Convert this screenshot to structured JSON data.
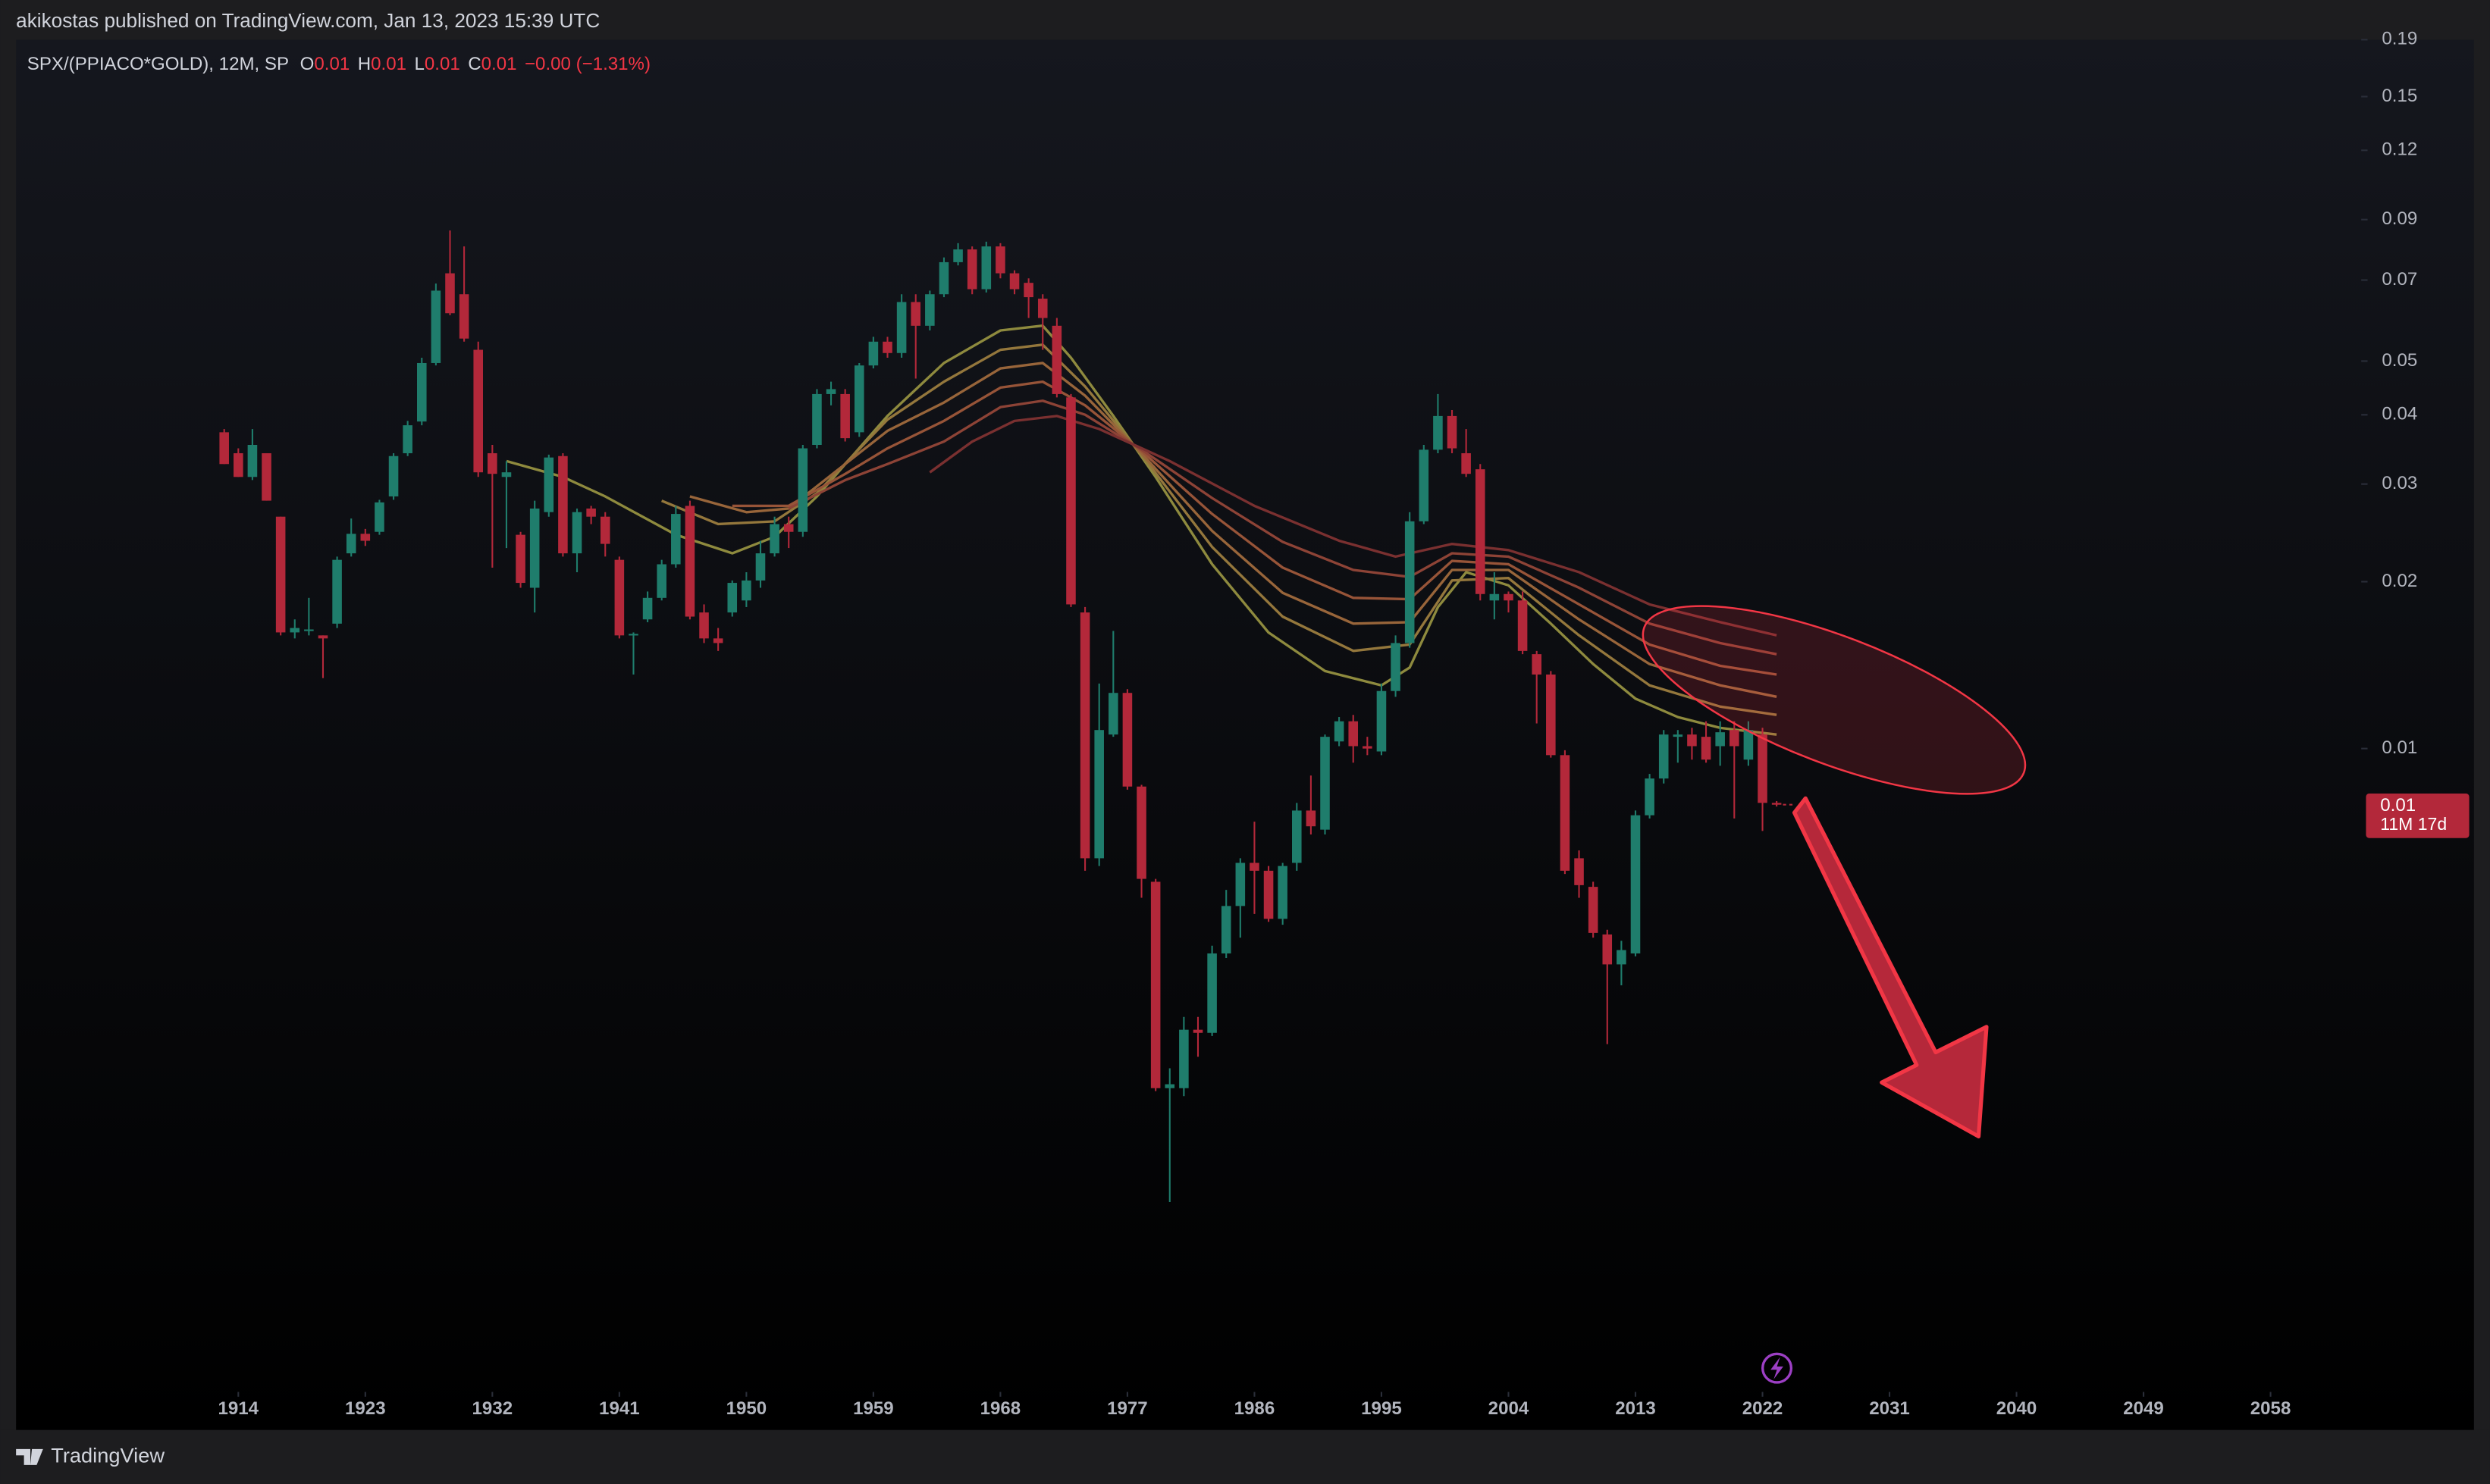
{
  "header": {
    "text": "akikostas published on TradingView.com, Jan 13, 2023 15:39 UTC"
  },
  "footer": {
    "brand": "TradingView"
  },
  "chart_data": {
    "type": "candlestick",
    "title": "SPX/(PPIACO*GOLD), 12M, SP",
    "ohlc_legend": [
      {
        "label": "O",
        "value": "0.01"
      },
      {
        "label": "H",
        "value": "0.01"
      },
      {
        "label": "L",
        "value": "0.01"
      },
      {
        "label": "C",
        "value": "0.01"
      }
    ],
    "change": "−0.00 (−1.31%)",
    "last_price": {
      "label": "0.01",
      "countdown": "11M 17d"
    },
    "log_scale": true,
    "grid": false,
    "up_color": "#1f7d6c",
    "down_color": "#b3283a",
    "xlim": [
      1898.25,
      2064.2
    ],
    "xticks": [
      1914,
      1923,
      1932,
      1941,
      1950,
      1959,
      1968,
      1977,
      1986,
      1995,
      2004,
      2013,
      2022,
      2031,
      2040,
      2049,
      2058
    ],
    "ylim": [
      0.0007,
      0.19
    ],
    "yticks": [
      0.01,
      0.02,
      0.03,
      0.04,
      0.05,
      0.07,
      0.09,
      0.12,
      0.15,
      0.19
    ],
    "x": [
      1913,
      1914,
      1915,
      1916,
      1917,
      1918,
      1919,
      1920,
      1921,
      1922,
      1923,
      1924,
      1925,
      1926,
      1927,
      1928,
      1929,
      1930,
      1931,
      1932,
      1933,
      1934,
      1935,
      1936,
      1937,
      1938,
      1939,
      1940,
      1941,
      1942,
      1943,
      1944,
      1945,
      1946,
      1947,
      1948,
      1949,
      1950,
      1951,
      1952,
      1953,
      1954,
      1955,
      1956,
      1957,
      1958,
      1959,
      1960,
      1961,
      1962,
      1963,
      1964,
      1965,
      1966,
      1967,
      1968,
      1969,
      1970,
      1971,
      1972,
      1973,
      1974,
      1975,
      1976,
      1977,
      1978,
      1979,
      1980,
      1981,
      1982,
      1983,
      1984,
      1985,
      1986,
      1987,
      1988,
      1989,
      1990,
      1991,
      1992,
      1993,
      1994,
      1995,
      1996,
      1997,
      1998,
      1999,
      2000,
      2001,
      2002,
      2003,
      2004,
      2005,
      2006,
      2007,
      2008,
      2009,
      2010,
      2011,
      2012,
      2013,
      2014,
      2015,
      2016,
      2017,
      2018,
      2019,
      2020,
      2021,
      2022,
      2023
    ],
    "open": [
      0.0372,
      0.0341,
      0.0309,
      0.0341,
      0.0262,
      0.0162,
      0.0163,
      0.016,
      0.0168,
      0.0225,
      0.0244,
      0.0246,
      0.0285,
      0.0341,
      0.0389,
      0.0496,
      0.072,
      0.066,
      0.0524,
      0.0341,
      0.0309,
      0.0243,
      0.0195,
      0.0267,
      0.0337,
      0.0225,
      0.0271,
      0.0262,
      0.0219,
      0.016,
      0.0171,
      0.0187,
      0.0215,
      0.0274,
      0.0176,
      0.0158,
      0.0176,
      0.0185,
      0.0201,
      0.0225,
      0.0254,
      0.0246,
      0.0353,
      0.0436,
      0.0436,
      0.0372,
      0.0491,
      0.0542,
      0.0517,
      0.0639,
      0.0579,
      0.066,
      0.0754,
      0.0795,
      0.0674,
      0.0805,
      0.072,
      0.0692,
      0.0648,
      0.0579,
      0.043,
      0.0176,
      0.00634,
      0.0106,
      0.0126,
      0.00854,
      0.00575,
      0.00244,
      0.00244,
      0.00311,
      0.00307,
      0.00427,
      0.0052,
      0.00622,
      0.00602,
      0.00493,
      0.00622,
      0.00773,
      0.00714,
      0.0103,
      0.0112,
      0.0101,
      0.00988,
      0.0127,
      0.0155,
      0.0257,
      0.0346,
      0.0398,
      0.0341,
      0.0319,
      0.0185,
      0.019,
      0.0185,
      0.0148,
      0.0136,
      0.00973,
      0.00634,
      0.00563,
      0.00462,
      0.00408,
      0.00427,
      0.00758,
      0.00883,
      0.0105,
      0.0106,
      0.0105,
      0.0101,
      0.0108,
      0.00955,
      0.0106,
      0.00798
    ],
    "high": [
      0.0377,
      0.0348,
      0.0377,
      0.0341,
      0.0262,
      0.0171,
      0.0187,
      0.016,
      0.0222,
      0.026,
      0.0249,
      0.0281,
      0.0341,
      0.039,
      0.0507,
      0.069,
      0.086,
      0.0805,
      0.0542,
      0.0353,
      0.033,
      0.0246,
      0.028,
      0.0339,
      0.0341,
      0.0271,
      0.0274,
      0.0267,
      0.0222,
      0.0162,
      0.0192,
      0.0219,
      0.0274,
      0.028,
      0.0182,
      0.0165,
      0.0201,
      0.0208,
      0.0237,
      0.0262,
      0.0262,
      0.0353,
      0.0445,
      0.0459,
      0.0445,
      0.0496,
      0.0553,
      0.0553,
      0.066,
      0.066,
      0.067,
      0.0769,
      0.0816,
      0.0805,
      0.0821,
      0.0816,
      0.0729,
      0.0705,
      0.066,
      0.0598,
      0.0436,
      0.018,
      0.0131,
      0.0163,
      0.0128,
      0.0086,
      0.00582,
      0.00265,
      0.00328,
      0.00328,
      0.00441,
      0.00556,
      0.00634,
      0.00738,
      0.00614,
      0.00622,
      0.00798,
      0.00894,
      0.0106,
      0.0114,
      0.0115,
      0.0105,
      0.0131,
      0.016,
      0.0267,
      0.0353,
      0.0436,
      0.0408,
      0.0377,
      0.0326,
      0.0208,
      0.0192,
      0.0192,
      0.015,
      0.0138,
      0.00993,
      0.00655,
      0.00575,
      0.00471,
      0.0045,
      0.00773,
      0.009,
      0.0108,
      0.0108,
      0.0109,
      0.0112,
      0.0112,
      0.0112,
      0.0112,
      0.0109,
      0.00804
    ],
    "low": [
      0.0326,
      0.0309,
      0.0305,
      0.028,
      0.016,
      0.0158,
      0.016,
      0.0134,
      0.0165,
      0.0222,
      0.0232,
      0.0243,
      0.0281,
      0.0337,
      0.0383,
      0.0491,
      0.0605,
      0.0542,
      0.0309,
      0.0212,
      0.023,
      0.0195,
      0.0176,
      0.0262,
      0.0222,
      0.0208,
      0.0254,
      0.0222,
      0.0158,
      0.0136,
      0.0169,
      0.0185,
      0.0212,
      0.0171,
      0.0155,
      0.015,
      0.0173,
      0.018,
      0.0195,
      0.0222,
      0.023,
      0.0241,
      0.0348,
      0.0416,
      0.0358,
      0.0365,
      0.0485,
      0.0507,
      0.0507,
      0.0465,
      0.0568,
      0.0652,
      0.0744,
      0.066,
      0.0665,
      0.0705,
      0.066,
      0.0598,
      0.0524,
      0.043,
      0.018,
      0.00602,
      0.00614,
      0.0105,
      0.00843,
      0.00538,
      0.00241,
      0.00152,
      0.00236,
      0.00278,
      0.00303,
      0.00419,
      0.00456,
      0.00503,
      0.00487,
      0.00481,
      0.00602,
      0.007,
      0.007,
      0.0101,
      0.00943,
      0.00973,
      0.00973,
      0.0124,
      0.0152,
      0.0254,
      0.0341,
      0.0341,
      0.0309,
      0.0185,
      0.0171,
      0.0176,
      0.0148,
      0.0111,
      0.00963,
      0.00594,
      0.00538,
      0.00456,
      0.00293,
      0.00374,
      0.00422,
      0.00748,
      0.00865,
      0.00943,
      0.00955,
      0.00943,
      0.00931,
      0.00748,
      0.00931,
      0.0071,
      0.00786
    ],
    "close": [
      0.0326,
      0.0309,
      0.0353,
      0.028,
      0.0162,
      0.0165,
      0.0164,
      0.0158,
      0.0219,
      0.0244,
      0.0237,
      0.0278,
      0.0337,
      0.0383,
      0.0496,
      0.067,
      0.061,
      0.0549,
      0.0315,
      0.0313,
      0.0315,
      0.0199,
      0.0271,
      0.0335,
      0.0225,
      0.0267,
      0.0262,
      0.0234,
      0.016,
      0.0161,
      0.0187,
      0.0215,
      0.0265,
      0.0173,
      0.0158,
      0.0155,
      0.0199,
      0.0201,
      0.0225,
      0.0254,
      0.0246,
      0.0348,
      0.0436,
      0.0445,
      0.0363,
      0.0491,
      0.0542,
      0.0517,
      0.0639,
      0.0579,
      0.066,
      0.0754,
      0.0795,
      0.0674,
      0.0805,
      0.072,
      0.0674,
      0.0652,
      0.0598,
      0.0436,
      0.0182,
      0.00634,
      0.0108,
      0.0126,
      0.00854,
      0.00582,
      0.00244,
      0.00248,
      0.00311,
      0.00307,
      0.00427,
      0.0052,
      0.00622,
      0.00602,
      0.00493,
      0.00614,
      0.00773,
      0.00724,
      0.0105,
      0.0112,
      0.0101,
      0.01,
      0.0127,
      0.0155,
      0.0257,
      0.0346,
      0.0398,
      0.0348,
      0.0313,
      0.019,
      0.019,
      0.0185,
      0.015,
      0.0136,
      0.00973,
      0.00602,
      0.00567,
      0.00465,
      0.00408,
      0.00433,
      0.00758,
      0.00883,
      0.0106,
      0.0106,
      0.0101,
      0.00955,
      0.0107,
      0.0101,
      0.0108,
      0.00798,
      0.00792
    ],
    "ribbon": [
      {
        "color": "#8e8a3e",
        "x": [
          1933,
          1937,
          1940,
          1945,
          1949,
          1952,
          1955,
          1960,
          1964,
          1968,
          1971,
          1973,
          1976,
          1979,
          1983,
          1987,
          1991,
          1995,
          1997,
          1999,
          2001,
          2004,
          2007,
          2010,
          2013,
          2016,
          2019,
          2023
        ],
        "values": [
          0.033,
          0.0309,
          0.0285,
          0.0243,
          0.0225,
          0.0241,
          0.0285,
          0.0398,
          0.0496,
          0.0568,
          0.0579,
          0.0507,
          0.0398,
          0.0309,
          0.0215,
          0.0162,
          0.0138,
          0.013,
          0.014,
          0.018,
          0.0208,
          0.0197,
          0.0168,
          0.0142,
          0.0123,
          0.0114,
          0.0109,
          0.0106
        ]
      },
      {
        "color": "#94773c",
        "x": [
          1944,
          1948,
          1952,
          1955,
          1960,
          1964,
          1968,
          1971,
          1974,
          1978,
          1983,
          1988,
          1993,
          1997,
          2000,
          2004,
          2009,
          2014,
          2019,
          2023
        ],
        "values": [
          0.028,
          0.0254,
          0.0257,
          0.0289,
          0.0392,
          0.0459,
          0.0524,
          0.0535,
          0.045,
          0.0339,
          0.0231,
          0.0173,
          0.015,
          0.0154,
          0.0201,
          0.0203,
          0.016,
          0.013,
          0.0119,
          0.0115
        ]
      },
      {
        "color": "#98653a",
        "x": [
          1946,
          1950,
          1953,
          1957,
          1960,
          1964,
          1968,
          1971,
          1974,
          1978,
          1983,
          1988,
          1993,
          1997,
          2000,
          2004,
          2009,
          2014,
          2019,
          2023
        ],
        "values": [
          0.0285,
          0.0267,
          0.0271,
          0.0326,
          0.0374,
          0.0421,
          0.0485,
          0.0496,
          0.0433,
          0.0341,
          0.0247,
          0.0191,
          0.0168,
          0.0169,
          0.021,
          0.021,
          0.0171,
          0.0142,
          0.013,
          0.0124
        ]
      },
      {
        "color": "#975438",
        "x": [
          1949,
          1953,
          1957,
          1960,
          1964,
          1968,
          1971,
          1974,
          1978,
          1983,
          1988,
          1993,
          1997,
          2000,
          2004,
          2009,
          2014,
          2019,
          2023
        ],
        "values": [
          0.0274,
          0.0274,
          0.0313,
          0.0348,
          0.039,
          0.0448,
          0.0459,
          0.0416,
          0.0344,
          0.0265,
          0.0212,
          0.0187,
          0.0186,
          0.0218,
          0.0215,
          0.0182,
          0.0154,
          0.0141,
          0.0136
        ]
      },
      {
        "color": "#8d4336",
        "x": [
          1953,
          1957,
          1960,
          1964,
          1968,
          1971,
          1974,
          1978,
          1983,
          1988,
          1993,
          1997,
          2000,
          2004,
          2009,
          2014,
          2019,
          2023
        ],
        "values": [
          0.0271,
          0.0305,
          0.0326,
          0.0358,
          0.0413,
          0.0424,
          0.04,
          0.0346,
          0.0283,
          0.0236,
          0.021,
          0.0204,
          0.0225,
          0.0222,
          0.0195,
          0.0168,
          0.0155,
          0.0148
        ]
      },
      {
        "color": "#7a3030",
        "x": [
          1963,
          1966,
          1969,
          1972,
          1975,
          1980,
          1986,
          1992,
          1996,
          2000,
          2004,
          2009,
          2014,
          2019,
          2023
        ],
        "values": [
          0.0315,
          0.0358,
          0.039,
          0.0398,
          0.0377,
          0.033,
          0.0274,
          0.0237,
          0.0222,
          0.0234,
          0.0228,
          0.0208,
          0.0182,
          0.0169,
          0.016
        ]
      }
    ]
  }
}
